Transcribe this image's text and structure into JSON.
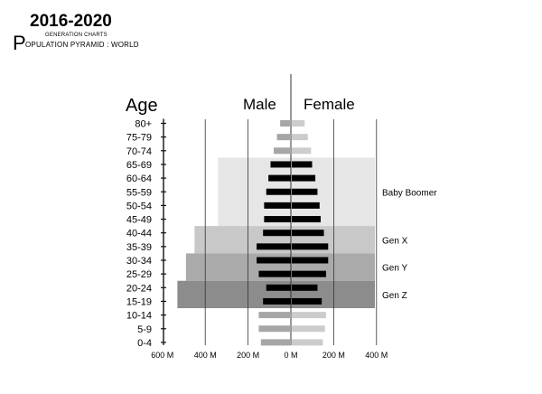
{
  "header": {
    "years": "2016-2020",
    "subtitle": "GENERATION CHARTS",
    "title_initial": "P",
    "title_rest": "OPULATION PYRAMID : WORLD"
  },
  "chart_data": {
    "type": "bar",
    "orientation": "horizontal",
    "style": "population pyramid",
    "age_axis_label": "Age",
    "male_label": "Male",
    "female_label": "Female",
    "categories": [
      "80+",
      "75-79",
      "70-74",
      "65-69",
      "60-64",
      "55-59",
      "50-54",
      "45-49",
      "40-44",
      "35-39",
      "30-34",
      "25-29",
      "20-24",
      "15-19",
      "10-14",
      "5-9",
      "0-4"
    ],
    "series": [
      {
        "name": "Male",
        "values": [
          50,
          65,
          80,
          95,
          105,
          115,
          125,
          125,
          130,
          160,
          160,
          150,
          115,
          130,
          150,
          150,
          140
        ]
      },
      {
        "name": "Female",
        "values": [
          60,
          75,
          90,
          95,
          110,
          120,
          130,
          135,
          150,
          170,
          170,
          160,
          120,
          140,
          160,
          155,
          145
        ]
      }
    ],
    "highlight_colors": {
      "male_other": "#a6a6a6",
      "female_other": "#cccccc",
      "in_generation": "#000000"
    },
    "xlim": [
      -600,
      400
    ],
    "x_tick_values": [
      -600,
      -400,
      -200,
      0,
      200,
      400
    ],
    "x_tick_labels": [
      "600 M",
      "400 M",
      "200 M",
      "0 M",
      "200 M",
      "400 M"
    ],
    "generations": [
      {
        "name": "Baby Boomer",
        "ages": [
          "65-69",
          "60-64",
          "55-59",
          "50-54",
          "45-49"
        ],
        "band_left_value": -340,
        "color": "#e6e6e6"
      },
      {
        "name": "Gen X",
        "ages": [
          "40-44",
          "35-39"
        ],
        "band_left_value": -450,
        "color": "#c8c8c8"
      },
      {
        "name": "Gen Y",
        "ages": [
          "30-34",
          "25-29"
        ],
        "band_left_value": -490,
        "color": "#aaaaaa"
      },
      {
        "name": "Gen Z",
        "ages": [
          "20-24",
          "15-19"
        ],
        "band_left_value": -530,
        "color": "#8c8c8c"
      }
    ]
  }
}
